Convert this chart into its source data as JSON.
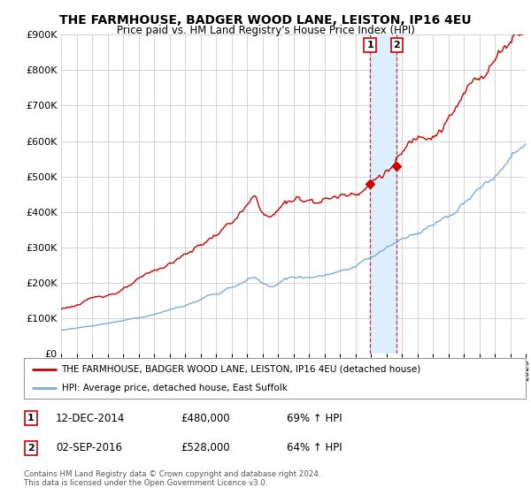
{
  "title": "THE FARMHOUSE, BADGER WOOD LANE, LEISTON, IP16 4EU",
  "subtitle": "Price paid vs. HM Land Registry's House Price Index (HPI)",
  "legend_line1": "THE FARMHOUSE, BADGER WOOD LANE, LEISTON, IP16 4EU (detached house)",
  "legend_line2": "HPI: Average price, detached house, East Suffolk",
  "annotation1_label": "1",
  "annotation1_date": "12-DEC-2014",
  "annotation1_price": "£480,000",
  "annotation1_hpi": "69% ↑ HPI",
  "annotation2_label": "2",
  "annotation2_date": "02-SEP-2016",
  "annotation2_price": "£528,000",
  "annotation2_hpi": "64% ↑ HPI",
  "footnote": "Contains HM Land Registry data © Crown copyright and database right 2024.\nThis data is licensed under the Open Government Licence v3.0.",
  "red_color": "#cc0000",
  "blue_color": "#7aaddb",
  "highlight_color": "#ddeeff",
  "background_color": "#ffffff",
  "grid_color": "#cccccc",
  "ylim": [
    0,
    900000
  ],
  "yticks": [
    0,
    100000,
    200000,
    300000,
    400000,
    500000,
    600000,
    700000,
    800000,
    900000
  ],
  "sale1_x": 2014.95,
  "sale1_y": 480000,
  "sale2_x": 2016.67,
  "sale2_y": 528000,
  "xmin": 1995,
  "xmax": 2025
}
